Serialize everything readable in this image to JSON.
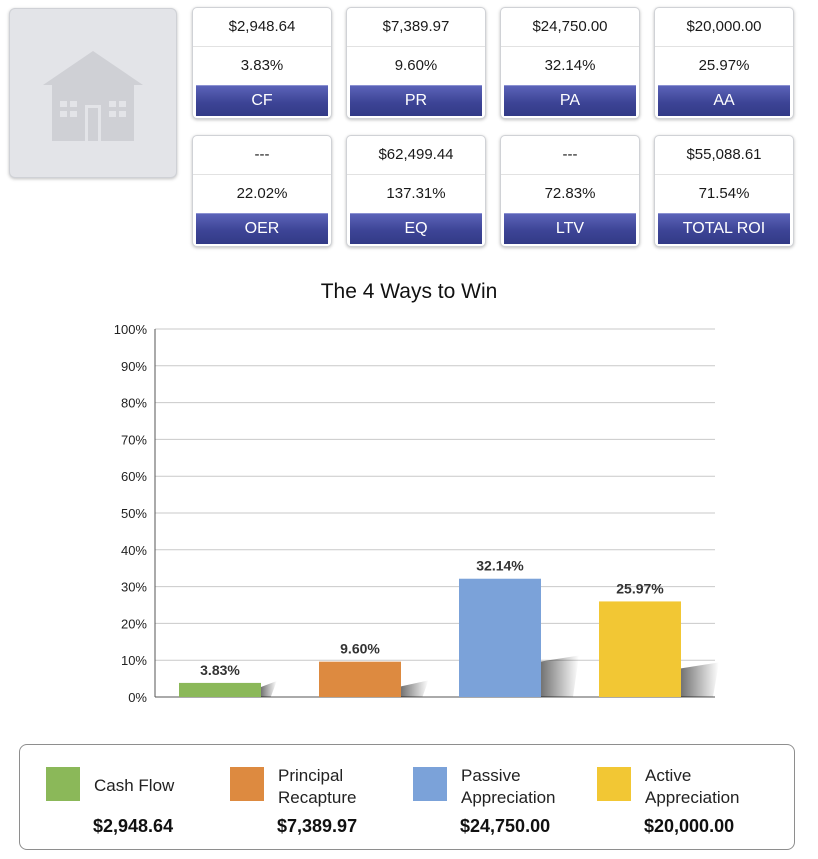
{
  "cards": [
    {
      "id": "cf",
      "top_value": "$2,948.64",
      "percent": "3.83%",
      "label": "CF"
    },
    {
      "id": "pr",
      "top_value": "$7,389.97",
      "percent": "9.60%",
      "label": "PR"
    },
    {
      "id": "pa",
      "top_value": "$24,750.00",
      "percent": "32.14%",
      "label": "PA"
    },
    {
      "id": "aa",
      "top_value": "$20,000.00",
      "percent": "25.97%",
      "label": "AA"
    },
    {
      "id": "oer",
      "top_value": "---",
      "percent": "22.02%",
      "label": "OER"
    },
    {
      "id": "eq",
      "top_value": "$62,499.44",
      "percent": "137.31%",
      "label": "EQ"
    },
    {
      "id": "ltv",
      "top_value": "---",
      "percent": "72.83%",
      "label": "LTV"
    },
    {
      "id": "total-roi",
      "top_value": "$55,088.61",
      "percent": "71.54%",
      "label": "TOTAL ROI"
    }
  ],
  "thumbnail": {
    "icon": "house-icon"
  },
  "chart_data": {
    "type": "bar",
    "title": "The 4 Ways to Win",
    "categories": [
      "Cash Flow",
      "Principal Recapture",
      "Passive Appreciation",
      "Active Appreciation"
    ],
    "values": [
      3.83,
      9.6,
      32.14,
      25.97
    ],
    "data_labels": [
      "3.83%",
      "9.60%",
      "32.14%",
      "25.97%"
    ],
    "colors": [
      "#8bb859",
      "#dd8a40",
      "#7ba2d9",
      "#f2c734"
    ],
    "ylim": [
      0,
      100
    ],
    "y_ticks": [
      "0%",
      "10%",
      "20%",
      "30%",
      "40%",
      "50%",
      "60%",
      "70%",
      "80%",
      "90%",
      "100%"
    ],
    "grid": true,
    "legend_placement": "bottom"
  },
  "legend": [
    {
      "name_lines": [
        "Cash Flow"
      ],
      "amount": "$2,948.64",
      "color": "#8bb859"
    },
    {
      "name_lines": [
        "Principal",
        "Recapture"
      ],
      "amount": "$7,389.97",
      "color": "#dd8a40"
    },
    {
      "name_lines": [
        "Passive",
        "Appreciation"
      ],
      "amount": "$24,750.00",
      "color": "#7ba2d9"
    },
    {
      "name_lines": [
        "Active",
        "Appreciation"
      ],
      "amount": "$20,000.00",
      "color": "#f2c734"
    }
  ]
}
